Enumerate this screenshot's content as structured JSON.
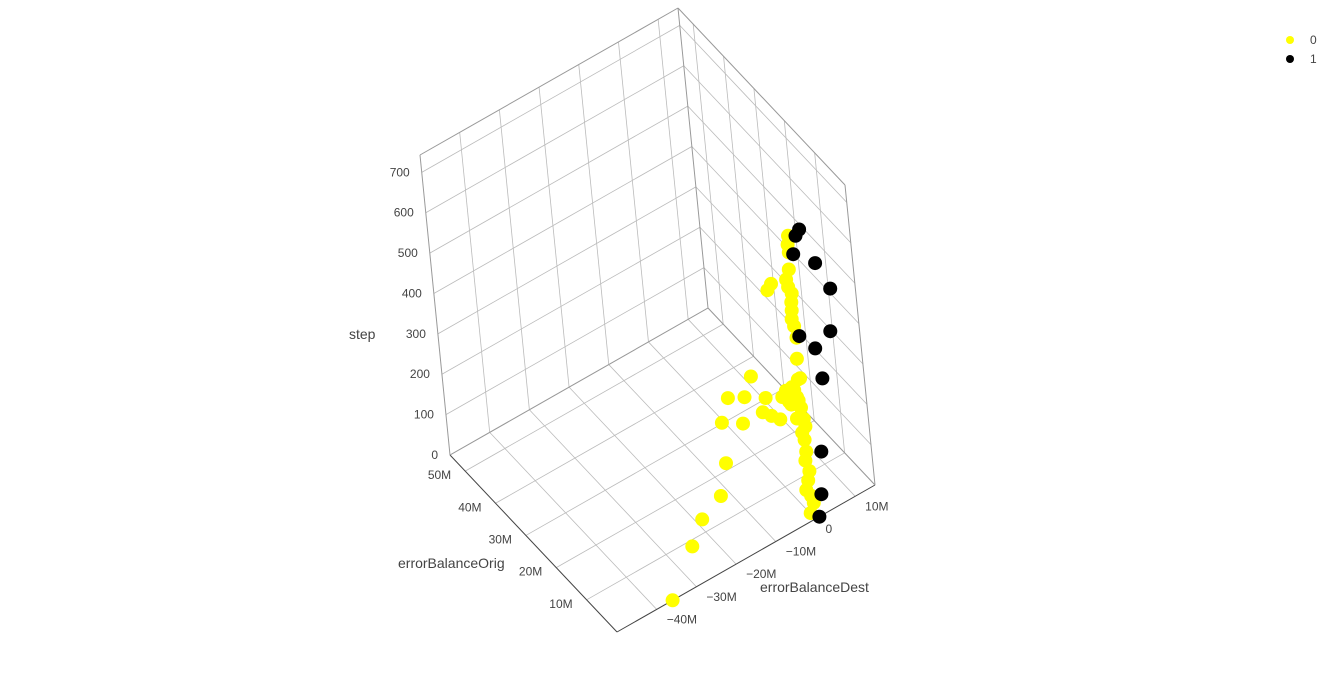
{
  "chart_data": {
    "type": "scatter3d",
    "title": "",
    "axes": {
      "x": {
        "title": "errorBalanceOrig",
        "range": [
          0,
          55000000
        ],
        "ticks": [
          10000000,
          20000000,
          30000000,
          40000000,
          50000000
        ],
        "tick_labels": [
          "10M",
          "20M",
          "30M",
          "40M",
          "50M"
        ]
      },
      "y": {
        "title": "errorBalanceDest",
        "range": [
          -50000000,
          15000000
        ],
        "ticks": [
          -40000000,
          -30000000,
          -20000000,
          -10000000,
          0,
          10000000
        ],
        "tick_labels": [
          "−40M",
          "−30M",
          "−20M",
          "−10M",
          "0",
          "10M"
        ]
      },
      "z": {
        "title": "step",
        "range": [
          0,
          743
        ],
        "ticks": [
          0,
          100,
          200,
          300,
          400,
          500,
          600,
          700
        ],
        "tick_labels": [
          "0",
          "100",
          "200",
          "300",
          "400",
          "500",
          "600",
          "700"
        ]
      }
    },
    "grid": true,
    "legend_position": "top-right",
    "series": [
      {
        "name": "0",
        "color": "#ffff00",
        "points": [
          [
            0,
            -36000000,
            0
          ],
          [
            0,
            -30000000,
            100
          ],
          [
            0,
            -27000000,
            150
          ],
          [
            0,
            -22000000,
            180
          ],
          [
            0,
            -20000000,
            250
          ],
          [
            0,
            -20000000,
            350
          ],
          [
            0,
            -18000000,
            400
          ],
          [
            0,
            -15000000,
            320
          ],
          [
            0,
            -12000000,
            420
          ],
          [
            0,
            -14000000,
            380
          ],
          [
            0,
            -9000000,
            350
          ],
          [
            0,
            -8000000,
            300
          ],
          [
            0,
            -6000000,
            280
          ],
          [
            0,
            -10000000,
            320
          ],
          [
            0,
            -5000000,
            330
          ],
          [
            0,
            -4000000,
            340
          ],
          [
            0,
            -3000000,
            300
          ],
          [
            0,
            -2000000,
            260
          ],
          [
            0,
            -6000000,
            600
          ],
          [
            0,
            -5000000,
            610
          ],
          [
            0,
            -1000000,
            20
          ],
          [
            0,
            0,
            40
          ],
          [
            0,
            -500000,
            60
          ],
          [
            0,
            -800000,
            100
          ],
          [
            0,
            -1000000,
            150
          ],
          [
            0,
            -700000,
            200
          ],
          [
            0,
            -400000,
            250
          ],
          [
            0,
            -1200000,
            300
          ],
          [
            0,
            -300000,
            350
          ],
          [
            0,
            -600000,
            400
          ],
          [
            0,
            -900000,
            350
          ],
          [
            0,
            -2000000,
            330
          ],
          [
            0,
            -1500000,
            310
          ],
          [
            0,
            -800000,
            280
          ],
          [
            0,
            -200000,
            450
          ],
          [
            0,
            -500000,
            480
          ],
          [
            0,
            -700000,
            520
          ],
          [
            0,
            -300000,
            560
          ],
          [
            0,
            -1000000,
            580
          ],
          [
            0,
            -400000,
            620
          ],
          [
            0,
            0,
            660
          ],
          [
            0,
            200000,
            700
          ],
          [
            0,
            -100000,
            680
          ],
          [
            0,
            -2500000,
            340
          ],
          [
            0,
            -3500000,
            310
          ],
          [
            0,
            -300000,
            120
          ],
          [
            0,
            -1500000,
            80
          ],
          [
            0,
            -600000,
            170
          ],
          [
            0,
            -1100000,
            220
          ],
          [
            0,
            -200000,
            230
          ],
          [
            0,
            -900000,
            500
          ],
          [
            0,
            -600000,
            540
          ],
          [
            0,
            -1300000,
            600
          ]
        ]
      },
      {
        "name": "1",
        "color": "#000000",
        "points": [
          [
            0,
            3000000,
            700
          ],
          [
            0,
            6000000,
            600
          ],
          [
            0,
            9000000,
            520
          ],
          [
            0,
            8000000,
            420
          ],
          [
            0,
            4000000,
            400
          ],
          [
            0,
            5000000,
            320
          ],
          [
            0,
            3000000,
            150
          ],
          [
            0,
            2000000,
            50
          ],
          [
            0,
            1000000,
            0
          ],
          [
            0,
            500000,
            450
          ],
          [
            0,
            1000000,
            650
          ],
          [
            0,
            2000000,
            690
          ]
        ]
      }
    ]
  },
  "legend": {
    "items": [
      {
        "label": "0",
        "color": "#ffff00"
      },
      {
        "label": "1",
        "color": "#000000"
      }
    ]
  }
}
